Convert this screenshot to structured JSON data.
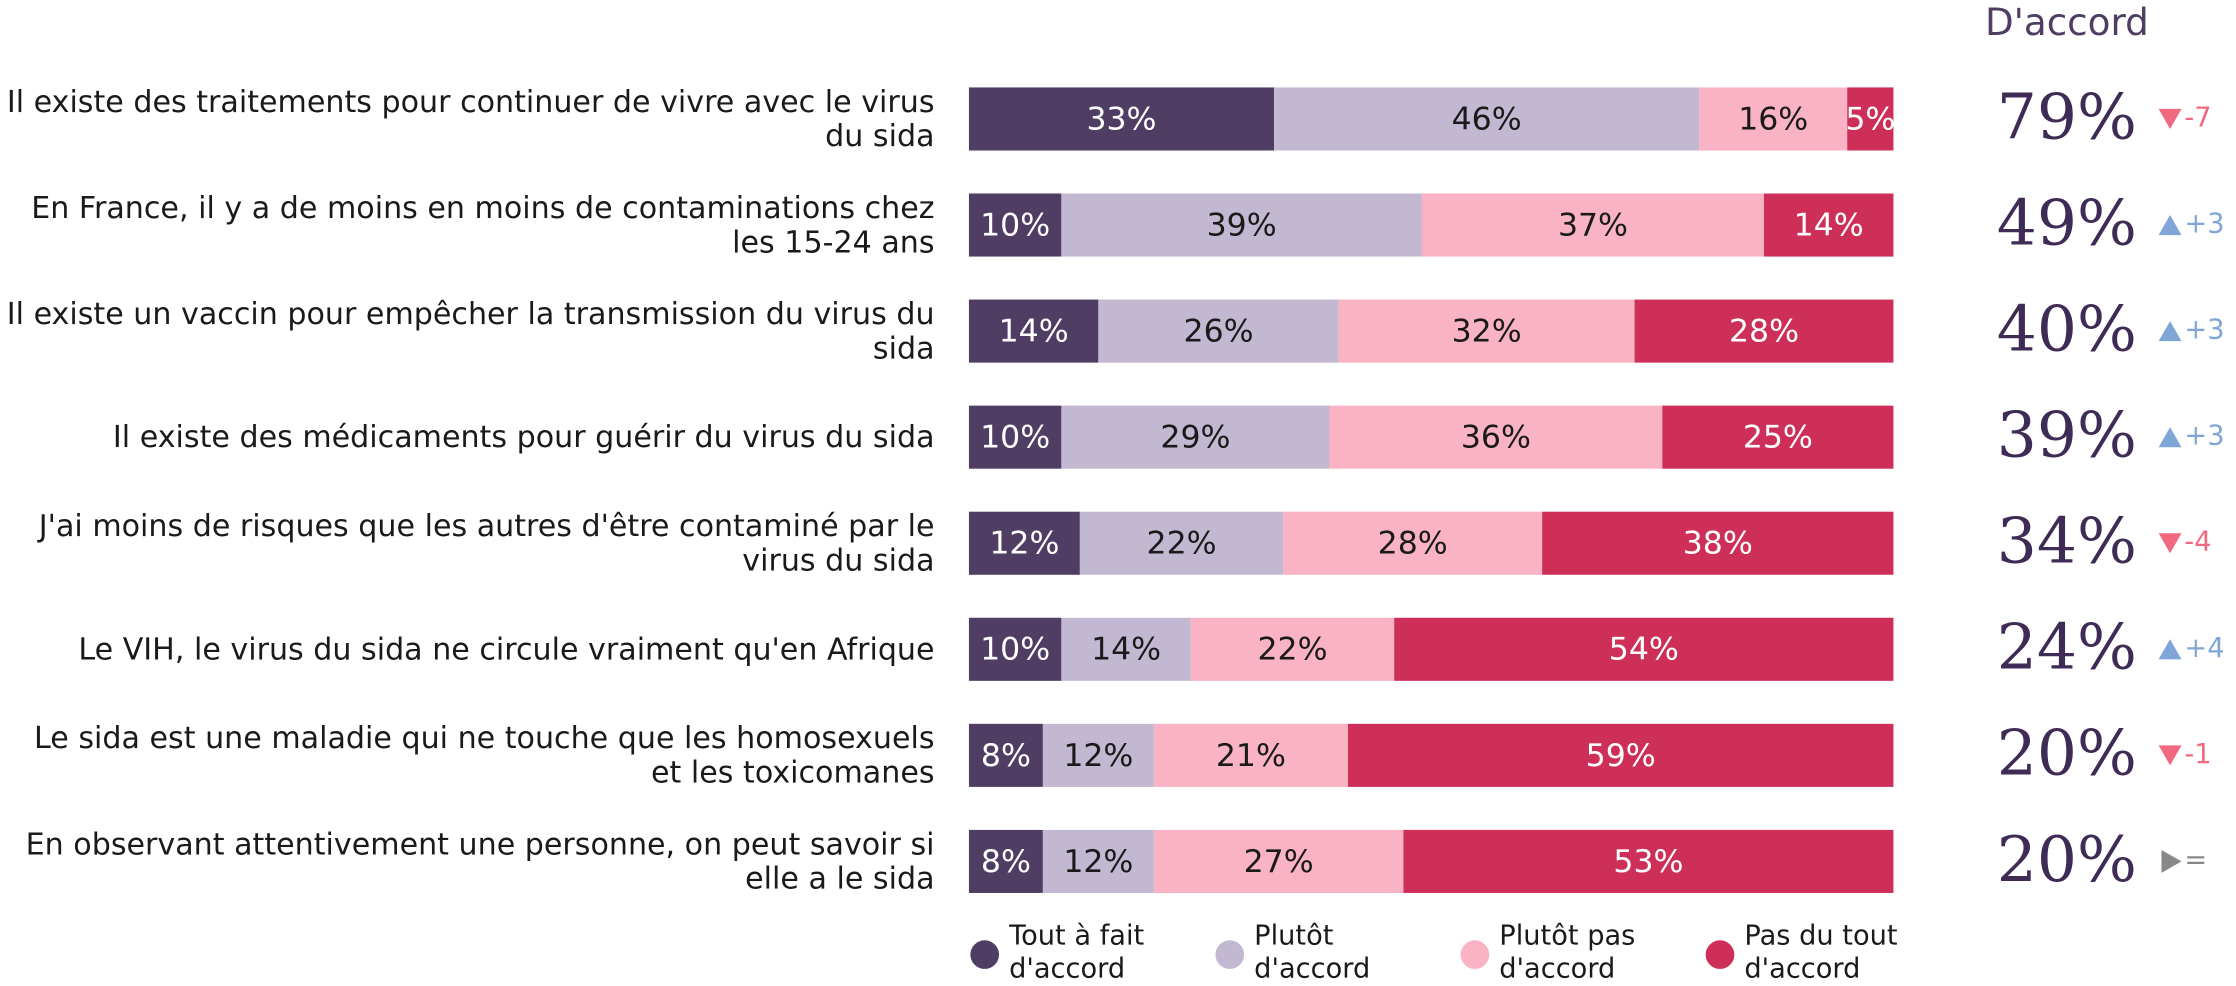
{
  "chart_data": {
    "type": "stacked_barh",
    "categories": [
      "Il existe des traitements pour continuer de vivre avec le virus du sida",
      "En France, il y a de moins en moins de contaminations chez les 15-24 ans",
      "Il existe un vaccin pour empêcher la transmission du virus du sida",
      "Il existe des médicaments pour guérir du virus du sida",
      "J'ai moins de risques que les autres d'être contaminé par le virus du sida",
      "Le VIH, le virus du sida ne circule vraiment qu'en Afrique",
      "Le sida est une maladie qui ne touche que les homosexuels et les toxicomanes",
      "En observant attentivement une personne, on peut savoir si elle a le sida"
    ],
    "series": [
      {
        "name": "Tout à fait d'accord",
        "color": "#4f3d63",
        "values": [
          33,
          10,
          14,
          10,
          12,
          10,
          8,
          8
        ],
        "value_labels": [
          "33%",
          "10%",
          "14%",
          "10%",
          "12%",
          "10%",
          "8%",
          "8%"
        ]
      },
      {
        "name": "Plutôt d'accord",
        "color": "#c3b8d1",
        "values": [
          46,
          39,
          26,
          29,
          22,
          14,
          12,
          12
        ],
        "value_labels": [
          "46%",
          "39%",
          "26%",
          "29%",
          "22%",
          "14%",
          "12%",
          "12%"
        ]
      },
      {
        "name": "Plutôt pas d'accord",
        "color": "#f9b3c4",
        "values": [
          16,
          37,
          32,
          36,
          28,
          22,
          21,
          27
        ],
        "value_labels": [
          "16%",
          "37%",
          "32%",
          "36%",
          "28%",
          "22%",
          "21%",
          "27%"
        ]
      },
      {
        "name": "Pas du tout d'accord",
        "color": "#cd2f58",
        "values": [
          5,
          14,
          28,
          25,
          38,
          54,
          59,
          53
        ],
        "value_labels": [
          "5%",
          "14%",
          "28%",
          "25%",
          "38%",
          "54%",
          "59%",
          "53%"
        ]
      }
    ],
    "agree": {
      "title": "D'accord",
      "values": [
        79,
        49,
        40,
        39,
        34,
        24,
        20,
        20
      ],
      "value_labels": [
        "79%",
        "49%",
        "40%",
        "39%",
        "34%",
        "24%",
        "20%",
        "20%"
      ]
    },
    "change": {
      "values": [
        -7,
        3,
        3,
        3,
        -4,
        4,
        -1,
        0
      ],
      "value_labels": [
        "-7",
        "+3",
        "+3",
        "+3",
        "-4",
        "+4",
        "-1",
        "="
      ]
    }
  }
}
